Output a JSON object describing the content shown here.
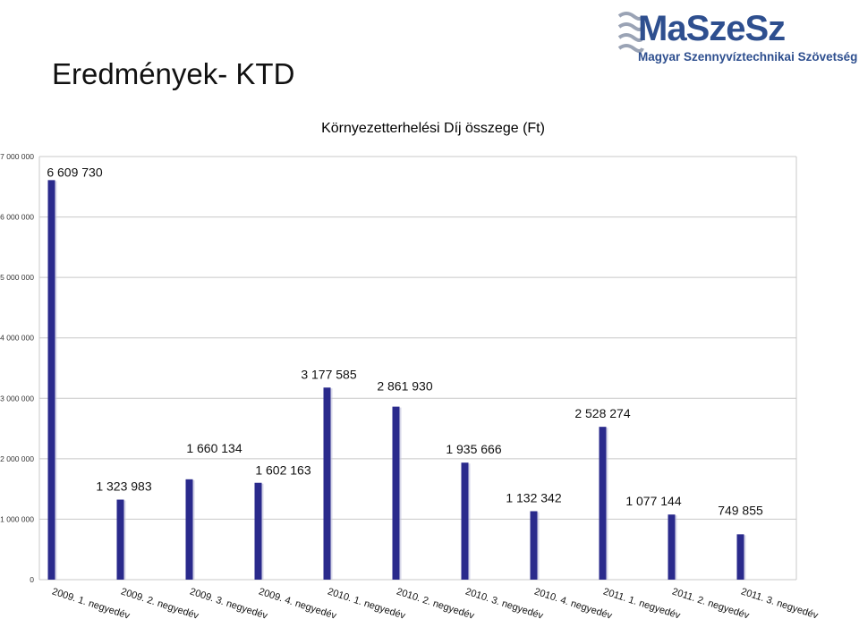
{
  "slide": {
    "title": "Eredmények- KTD",
    "logo": {
      "name": "MaSzeSz",
      "subtitle": "Magyar Szennyvíztechnikai Szövetség",
      "color": "#2e4f8f"
    }
  },
  "chart_data": {
    "type": "bar",
    "title": "Környezetterhelési Díj összege (Ft)",
    "xlabel": "",
    "ylabel": "",
    "ylim": [
      0,
      7000000
    ],
    "yticks": [
      0,
      1000000,
      2000000,
      3000000,
      4000000,
      5000000,
      6000000,
      7000000
    ],
    "ytick_labels": [
      "0",
      "1 000 000",
      "2 000 000",
      "3 000 000",
      "4 000 000",
      "5 000 000",
      "6 000 000",
      "7 000 000"
    ],
    "grid": true,
    "legend": "none",
    "bar_color": "#2a2a8c",
    "categories": [
      "2009. 1. negyedév",
      "2009. 2. negyedév",
      "2009. 3. negyedév",
      "2009. 4. negyedév",
      "2010. 1. negyedév",
      "2010. 2. negyedév",
      "2010. 3. negyedév",
      "2010. 4. negyedév",
      "2011. 1. negyedév",
      "2011. 2. negyedév",
      "2011. 3. negyedév"
    ],
    "values": [
      6609730,
      1323983,
      1660134,
      1602163,
      3177585,
      2861930,
      1935666,
      1132342,
      2528274,
      1077144,
      749855
    ],
    "value_labels": [
      "6 609 730",
      "1 323 983",
      "1 660 134",
      "1 602 163",
      "3 177 585",
      "2 861 930",
      "1 935 666",
      "1 132 342",
      "2 528 274",
      "1 077 144",
      "749 855"
    ]
  }
}
